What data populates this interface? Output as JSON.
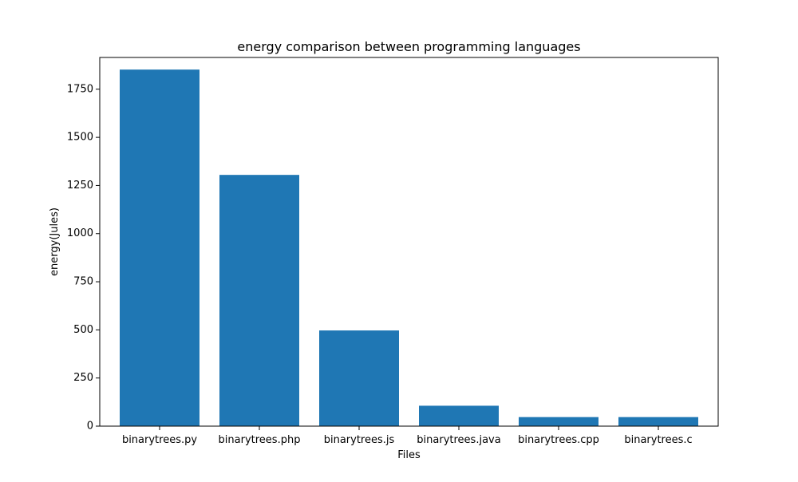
{
  "chart_data": {
    "type": "bar",
    "title": "energy comparison between programming languages",
    "xlabel": "Files",
    "ylabel": "energy(Jules)",
    "categories": [
      "binarytrees.py",
      "binarytrees.php",
      "binarytrees.js",
      "binarytrees.java",
      "binarytrees.cpp",
      "binarytrees.c"
    ],
    "values": [
      1852,
      1305,
      497,
      106,
      47,
      47
    ],
    "ylim": [
      0,
      1915
    ],
    "yticks": [
      0,
      250,
      500,
      750,
      1000,
      1250,
      1500,
      1750
    ],
    "grid": false,
    "bar_color": "#1f77b4"
  }
}
